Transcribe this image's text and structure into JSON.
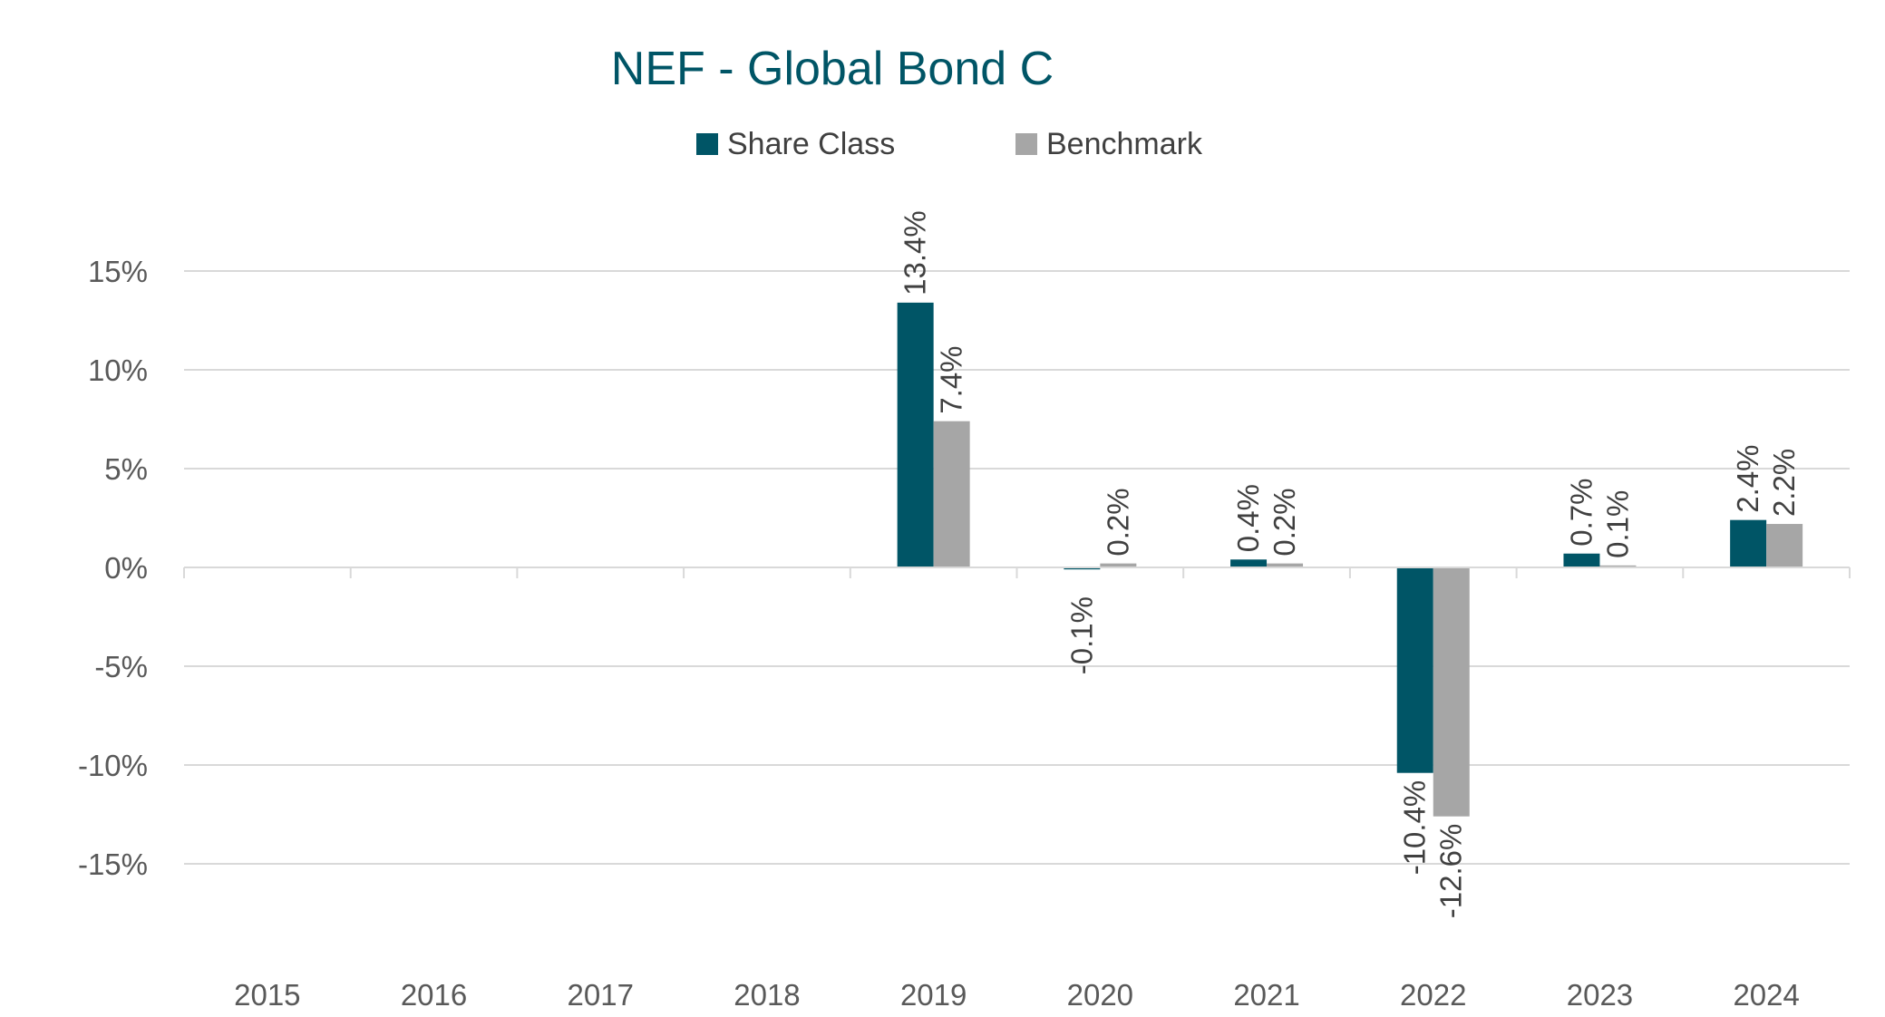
{
  "chart_data": {
    "type": "bar",
    "title": "NEF - Global Bond C",
    "categories": [
      "2015",
      "2016",
      "2017",
      "2018",
      "2019",
      "2020",
      "2021",
      "2022",
      "2023",
      "2024"
    ],
    "series": [
      {
        "name": "Share Class",
        "color": "#005566",
        "values": [
          null,
          null,
          null,
          null,
          13.4,
          -0.1,
          0.4,
          -10.4,
          0.7,
          2.4
        ],
        "labels": [
          "",
          "",
          "",
          "",
          "13.4%",
          "-0.1%",
          "0.4%",
          "-10.4%",
          "0.7%",
          "2.4%"
        ]
      },
      {
        "name": "Benchmark",
        "color": "#A6A6A6",
        "values": [
          null,
          null,
          null,
          null,
          7.4,
          0.2,
          0.2,
          -12.6,
          0.1,
          2.2
        ],
        "labels": [
          "",
          "",
          "",
          "",
          "7.4%",
          "0.2%",
          "0.2%",
          "-12.6%",
          "0.1%",
          "2.2%"
        ]
      }
    ],
    "y_ticks": [
      15,
      10,
      5,
      0,
      -5,
      -10,
      -15
    ],
    "y_tick_labels": [
      "15%",
      "10%",
      "5%",
      "0%",
      "-5%",
      "-10%",
      "-15%"
    ],
    "ylim": [
      -20,
      15
    ],
    "grid": true,
    "legend": "top-center",
    "xlabel": "",
    "ylabel": ""
  }
}
